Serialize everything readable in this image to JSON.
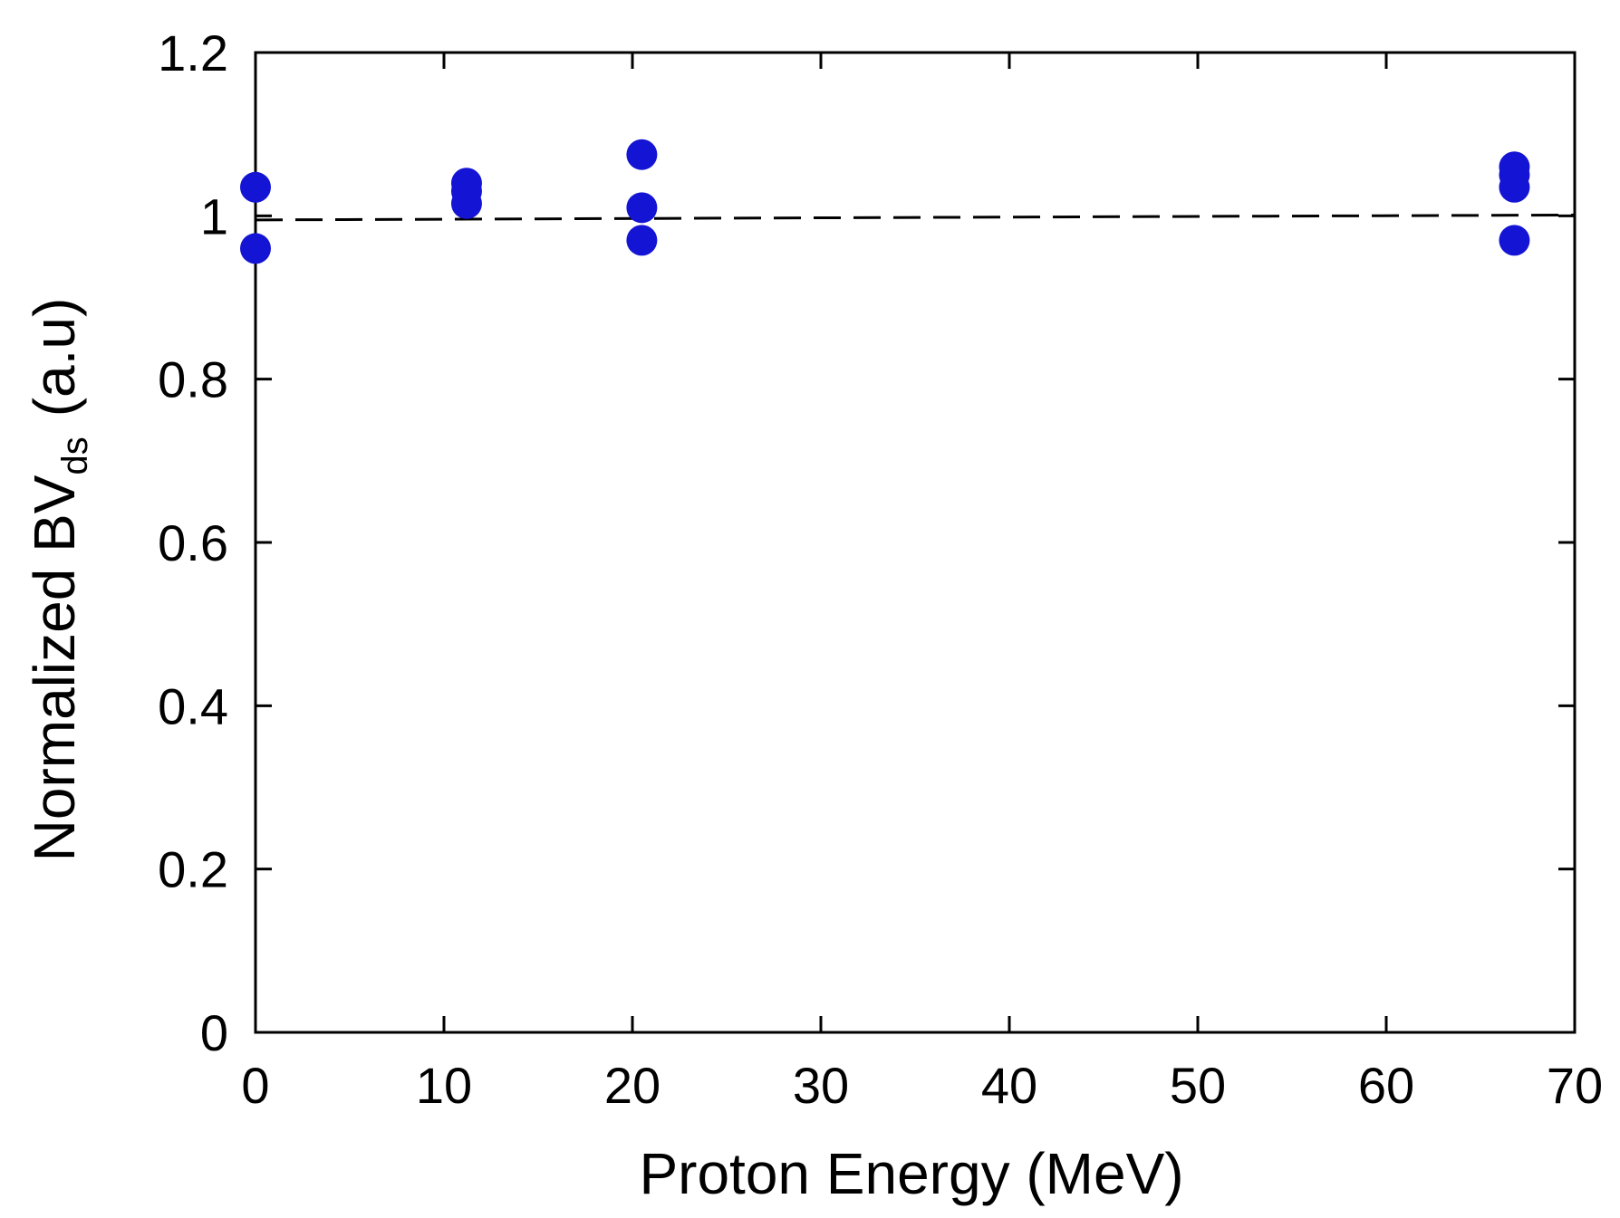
{
  "chart_data": {
    "type": "scatter",
    "xlabel": "Proton Energy (MeV)",
    "ylabel": {
      "main": "Normalized BV",
      "subscript": "ds",
      "unit": "(a.u)"
    },
    "xlim": [
      0,
      70
    ],
    "ylim": [
      0,
      1.2
    ],
    "x_ticks": [
      0,
      10,
      20,
      30,
      40,
      50,
      60,
      70
    ],
    "x_tick_labels": [
      "0",
      "10",
      "20",
      "30",
      "40",
      "50",
      "60",
      "70"
    ],
    "y_ticks": [
      0,
      0.2,
      0.4,
      0.6,
      0.8,
      1.0,
      1.2
    ],
    "y_tick_labels": [
      "0",
      "0.2",
      "0.4",
      "0.6",
      "0.8",
      "1",
      "1.2"
    ],
    "grid": false,
    "series": [
      {
        "marker": "circle",
        "color": "#1414d4",
        "points": [
          {
            "x": 0,
            "y": 1.035
          },
          {
            "x": 0,
            "y": 0.96
          },
          {
            "x": 11.2,
            "y": 1.04
          },
          {
            "x": 11.2,
            "y": 1.03
          },
          {
            "x": 11.2,
            "y": 1.015
          },
          {
            "x": 20.5,
            "y": 1.075
          },
          {
            "x": 20.5,
            "y": 1.01
          },
          {
            "x": 20.5,
            "y": 0.97
          },
          {
            "x": 66.8,
            "y": 1.06
          },
          {
            "x": 66.8,
            "y": 1.05
          },
          {
            "x": 66.8,
            "y": 1.035
          },
          {
            "x": 66.8,
            "y": 0.97
          }
        ]
      }
    ],
    "reference_line": {
      "style": "dashed",
      "color": "#000000",
      "x": [
        0,
        70
      ],
      "y": [
        0.995,
        1.001
      ]
    }
  }
}
